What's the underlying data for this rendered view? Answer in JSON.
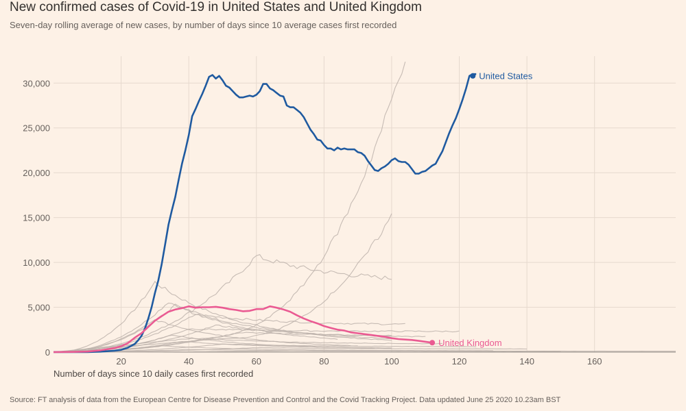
{
  "header": {
    "title": "New confirmed cases of Covid-19 in United States and United Kingdom",
    "subtitle": "Seven-day rolling average of new cases, by number of days since 10 average cases first recorded"
  },
  "footer": {
    "source": "Source: FT analysis of data from the European Centre for Disease Prevention and Control and the Covid Tracking Project. Data updated June 25 2020 10.23am BST"
  },
  "colors": {
    "background": "#fdf1e6",
    "grid": "#e6d9ce",
    "us": "#1f5aa0",
    "uk": "#ea5a92",
    "others": "#bcb2aa"
  },
  "chart_data": {
    "type": "line",
    "title": "New confirmed cases of Covid-19 in United States and United Kingdom",
    "subtitle": "Seven-day rolling average of new cases, by number of days since 10 average cases first recorded",
    "xlabel": "Number of days since 10 daily cases first recorded",
    "ylabel": "",
    "xlim": [
      0,
      184
    ],
    "ylim": [
      0,
      33000
    ],
    "xticks": [
      20,
      40,
      60,
      80,
      100,
      120,
      140,
      160
    ],
    "xtick_labels": [
      "20",
      "40",
      "60",
      "80",
      "100",
      "120",
      "140",
      "160"
    ],
    "yticks": [
      0,
      5000,
      10000,
      15000,
      20000,
      25000,
      30000
    ],
    "ytick_labels": [
      "0",
      "5,000",
      "10,000",
      "15,000",
      "20,000",
      "25,000",
      "30,000"
    ],
    "grid": true,
    "series": [
      {
        "name": "United States",
        "highlight": true,
        "x": [
          0,
          6,
          10,
          14,
          18,
          20,
          22,
          24,
          25,
          26,
          27,
          28,
          29,
          30,
          31,
          32,
          33,
          34,
          35,
          36,
          37,
          38,
          39,
          40,
          41,
          42,
          43,
          44,
          45,
          46,
          47,
          48,
          49,
          50,
          51,
          52,
          53,
          54,
          55,
          56,
          57,
          58,
          59,
          60,
          61,
          62,
          63,
          64,
          65,
          66,
          67,
          68,
          69,
          70,
          71,
          72,
          73,
          74,
          75,
          76,
          77,
          78,
          79,
          80,
          81,
          82,
          83,
          84,
          85,
          86,
          87,
          88,
          89,
          90,
          91,
          92,
          93,
          94,
          95,
          96,
          97,
          98,
          99,
          100,
          101,
          102,
          103,
          104,
          105,
          106,
          107,
          108,
          109,
          110,
          111,
          112,
          113,
          114,
          115,
          116,
          117,
          118,
          119,
          120,
          121,
          122,
          123,
          124,
          125
        ],
        "values": [
          0,
          5,
          10,
          50,
          150,
          250,
          500,
          900,
          1300,
          1800,
          2600,
          3700,
          5000,
          6600,
          8000,
          9800,
          12000,
          14200,
          15800,
          17300,
          19200,
          21000,
          22500,
          24200,
          26300,
          27100,
          28000,
          28800,
          29700,
          30700,
          30900,
          30500,
          30800,
          30300,
          29700,
          29500,
          29100,
          28700,
          28400,
          28400,
          28500,
          28600,
          28500,
          28700,
          29100,
          29900,
          29900,
          29400,
          29200,
          28900,
          28600,
          28500,
          27500,
          27300,
          27300,
          27000,
          26700,
          26200,
          25500,
          24800,
          24300,
          23700,
          23600,
          23100,
          22700,
          22700,
          22500,
          22800,
          22600,
          22700,
          22600,
          22600,
          22600,
          22300,
          22200,
          21900,
          21300,
          20800,
          20300,
          20200,
          20500,
          20700,
          21000,
          21400,
          21600,
          21300,
          21200,
          21200,
          20900,
          20400,
          19900,
          19900,
          20100,
          20200,
          20500,
          20800,
          21000,
          21700,
          22400,
          23400,
          24400,
          25300,
          26100,
          27100,
          28200,
          29400,
          30800,
          31000,
          31000
        ]
      },
      {
        "name": "United Kingdom",
        "highlight": true,
        "x": [
          0,
          6,
          10,
          14,
          18,
          20,
          22,
          24,
          26,
          28,
          30,
          32,
          34,
          36,
          38,
          40,
          42,
          44,
          46,
          48,
          50,
          52,
          54,
          56,
          58,
          60,
          62,
          64,
          66,
          68,
          70,
          72,
          74,
          76,
          78,
          80,
          82,
          84,
          86,
          88,
          90,
          92,
          94,
          96,
          98,
          100,
          102,
          104,
          106,
          108,
          110,
          112
        ],
        "values": [
          0,
          20,
          60,
          200,
          450,
          650,
          1000,
          1600,
          2100,
          2800,
          3500,
          4000,
          4500,
          4750,
          4900,
          5100,
          4950,
          5000,
          5000,
          5050,
          4950,
          4800,
          4700,
          4550,
          4600,
          4800,
          4800,
          5100,
          4950,
          4750,
          4500,
          4100,
          3750,
          3450,
          3200,
          2900,
          2700,
          2500,
          2400,
          2200,
          2100,
          2000,
          1900,
          1800,
          1700,
          1550,
          1450,
          1400,
          1350,
          1250,
          1150,
          1050
        ]
      }
    ],
    "annotations": [
      "United States",
      "United Kingdom"
    ]
  }
}
